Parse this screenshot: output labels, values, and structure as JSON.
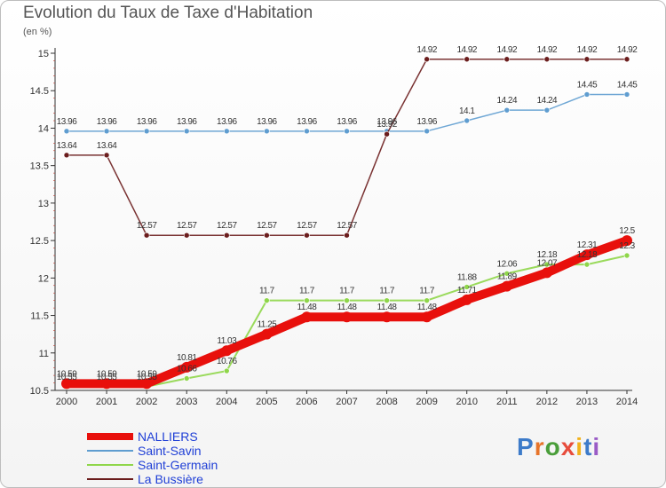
{
  "title": "Evolution du Taux de Taxe d'Habitation",
  "unit": "(en %)",
  "brand": "Proxiti",
  "colors": {
    "NALLIERS": "#e8100c",
    "Saint-Savin": "#5f9dd0",
    "Saint-Germain": "#8fd64a",
    "La Bussière": "#6b1d1d"
  },
  "chart_data": {
    "type": "line",
    "x": [
      2000,
      2001,
      2002,
      2003,
      2004,
      2005,
      2006,
      2007,
      2008,
      2009,
      2010,
      2011,
      2012,
      2013,
      2014
    ],
    "ylim": [
      10.5,
      15
    ],
    "yticks": [
      10.5,
      11,
      11.5,
      12,
      12.5,
      13,
      13.5,
      14,
      14.5,
      15
    ],
    "grid": false,
    "legend": "bottom-left",
    "series": [
      {
        "name": "NALLIERS",
        "values": [
          10.59,
          10.59,
          10.59,
          10.81,
          11.03,
          11.25,
          11.48,
          11.48,
          11.48,
          11.48,
          11.71,
          11.89,
          12.07,
          12.31,
          12.5
        ]
      },
      {
        "name": "Saint-Savin",
        "values": [
          13.96,
          13.96,
          13.96,
          13.96,
          13.96,
          13.96,
          13.96,
          13.96,
          13.96,
          13.96,
          14.1,
          14.24,
          14.24,
          14.45,
          14.45
        ]
      },
      {
        "name": "Saint-Germain",
        "values": [
          10.55,
          10.55,
          10.55,
          10.66,
          10.76,
          11.7,
          11.7,
          11.7,
          11.7,
          11.7,
          11.88,
          12.06,
          12.18,
          12.18,
          12.3
        ]
      },
      {
        "name": "La Bussière",
        "values": [
          13.64,
          13.64,
          12.57,
          12.57,
          12.57,
          12.57,
          12.57,
          12.57,
          13.92,
          14.92,
          14.92,
          14.92,
          14.92,
          14.92,
          14.92
        ]
      }
    ],
    "labels": [
      {
        "series": "NALLIERS",
        "values": [
          "10.59",
          "10.59",
          "10.59",
          "10.81",
          "11.03",
          "11.25",
          "11.48",
          "11.48",
          "11.48",
          "11.48",
          "11.71",
          "11.89",
          "12.07",
          "12.31",
          "12.5"
        ]
      },
      {
        "series": "Saint-Savin",
        "values": [
          "13.96",
          "13.96",
          "13.96",
          "13.96",
          "13.96",
          "13.96",
          "13.96",
          "13.96",
          "13.96",
          "13.96",
          "14.1",
          "14.24",
          "14.24",
          "14.45",
          "14.45"
        ]
      },
      {
        "series": "Saint-Germain",
        "values": [
          "10.55",
          "10.55",
          "10.55",
          "10.66",
          "10.76",
          "11.7",
          "11.7",
          "11.7",
          "11.7",
          "11.7",
          "11.88",
          "12.06",
          "12.18",
          "12.18",
          "12.3"
        ]
      },
      {
        "series": "La Bussière",
        "values": [
          "13.64",
          "13.64",
          "12.57",
          "12.57",
          "12.57",
          "12.57",
          "12.57",
          "12.57",
          "13.92",
          "14.92",
          "14.92",
          "14.92",
          "14.92",
          "14.92",
          "14.92"
        ]
      }
    ]
  }
}
